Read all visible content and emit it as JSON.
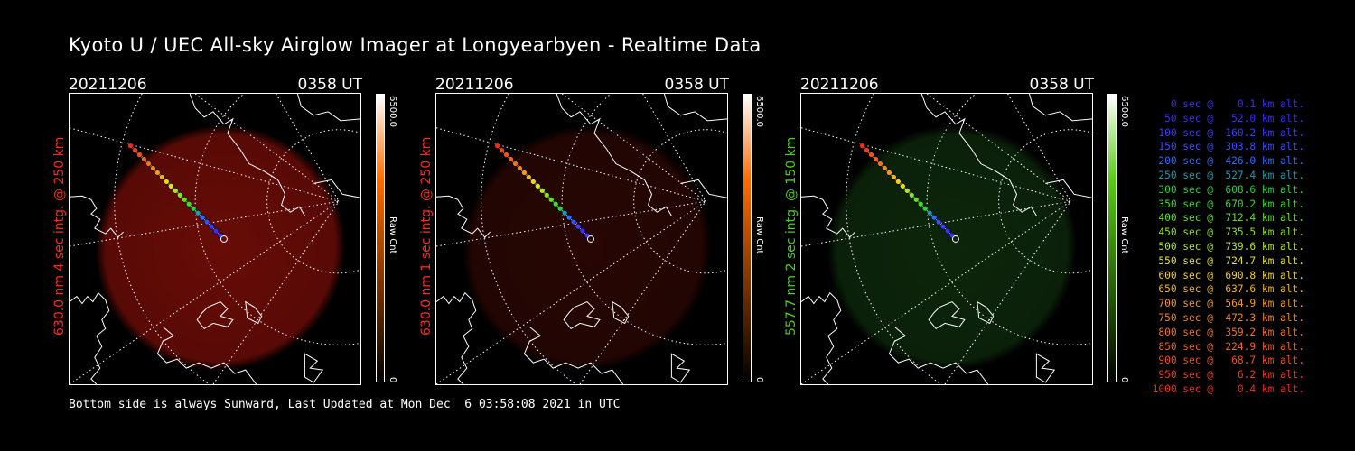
{
  "title": "Kyoto U / UEC All-sky Airglow Imager at Longyearbyen - Realtime Data",
  "panels": [
    {
      "date": "20211206",
      "time": "0358 UT",
      "side_label": "630.0 nm 4 sec intg. @ 250 km",
      "side_color": "#ff2a1a",
      "glow_color": "#7a0e08",
      "glow_opacity": 0.85,
      "colorbar_max": "6500.0",
      "colorbar_min": "0",
      "colorbar_unit": "Raw Cnt",
      "colorbar_top": "#ffffff",
      "colorbar_mid": "#ff6a00",
      "colorbar_bottom": "#000000"
    },
    {
      "date": "20211206",
      "time": "0358 UT",
      "side_label": "630.0 nm 1 sec intg. @ 250 km",
      "side_color": "#ff2a1a",
      "glow_color": "#2c0704",
      "glow_opacity": 0.9,
      "colorbar_max": "6500.0",
      "colorbar_min": "0",
      "colorbar_unit": "Raw Cnt",
      "colorbar_top": "#ffffff",
      "colorbar_mid": "#ff6a00",
      "colorbar_bottom": "#000000"
    },
    {
      "date": "20211206",
      "time": "0358 UT",
      "side_label": "557.7 nm 2 sec intg. @ 150 km",
      "side_color": "#4ccd1c",
      "glow_color": "#0e2a0c",
      "glow_opacity": 0.9,
      "colorbar_max": "6500.0",
      "colorbar_min": "0",
      "colorbar_unit": "Raw Cnt",
      "colorbar_top": "#ffffff",
      "colorbar_mid": "#55cc11",
      "colorbar_bottom": "#000000"
    }
  ],
  "footer": "Bottom side is always Sunward, Last Updated at Mon Dec  6 03:58:08 2021 in UTC",
  "legend": [
    {
      "text": "   0 sec @    0.1 km alt.",
      "color": "#3a2cff"
    },
    {
      "text": "  50 sec @   52.0 km alt.",
      "color": "#3a2cff"
    },
    {
      "text": " 100 sec @  160.2 km alt.",
      "color": "#3a3cff"
    },
    {
      "text": " 150 sec @  303.8 km alt.",
      "color": "#3a4cff"
    },
    {
      "text": " 200 sec @  426.0 km alt.",
      "color": "#2c6cff"
    },
    {
      "text": " 250 sec @  527.4 km alt.",
      "color": "#1f9ab0"
    },
    {
      "text": " 300 sec @  608.6 km alt.",
      "color": "#2fcf4a"
    },
    {
      "text": " 350 sec @  670.2 km alt.",
      "color": "#3fdc2a"
    },
    {
      "text": " 400 sec @  712.4 km alt.",
      "color": "#5fe01a"
    },
    {
      "text": " 450 sec @  735.5 km alt.",
      "color": "#8ae21a"
    },
    {
      "text": " 500 sec @  739.6 km alt.",
      "color": "#b6e61a"
    },
    {
      "text": " 550 sec @  724.7 km alt.",
      "color": "#e2e41a"
    },
    {
      "text": " 600 sec @  690.8 km alt.",
      "color": "#f2d21a"
    },
    {
      "text": " 650 sec @  637.6 km alt.",
      "color": "#f2b41a"
    },
    {
      "text": " 700 sec @  564.9 km alt.",
      "color": "#f29a1a"
    },
    {
      "text": " 750 sec @  472.3 km alt.",
      "color": "#f2861a"
    },
    {
      "text": " 800 sec @  359.2 km alt.",
      "color": "#f2741a"
    },
    {
      "text": " 850 sec @  224.9 km alt.",
      "color": "#f2621a"
    },
    {
      "text": " 900 sec @   68.7 km alt.",
      "color": "#f2501a"
    },
    {
      "text": " 950 sec @    6.2 km alt.",
      "color": "#f23e1a"
    },
    {
      "text": "1000 sec @    0.4 km alt.",
      "color": "#f22c1a"
    }
  ]
}
